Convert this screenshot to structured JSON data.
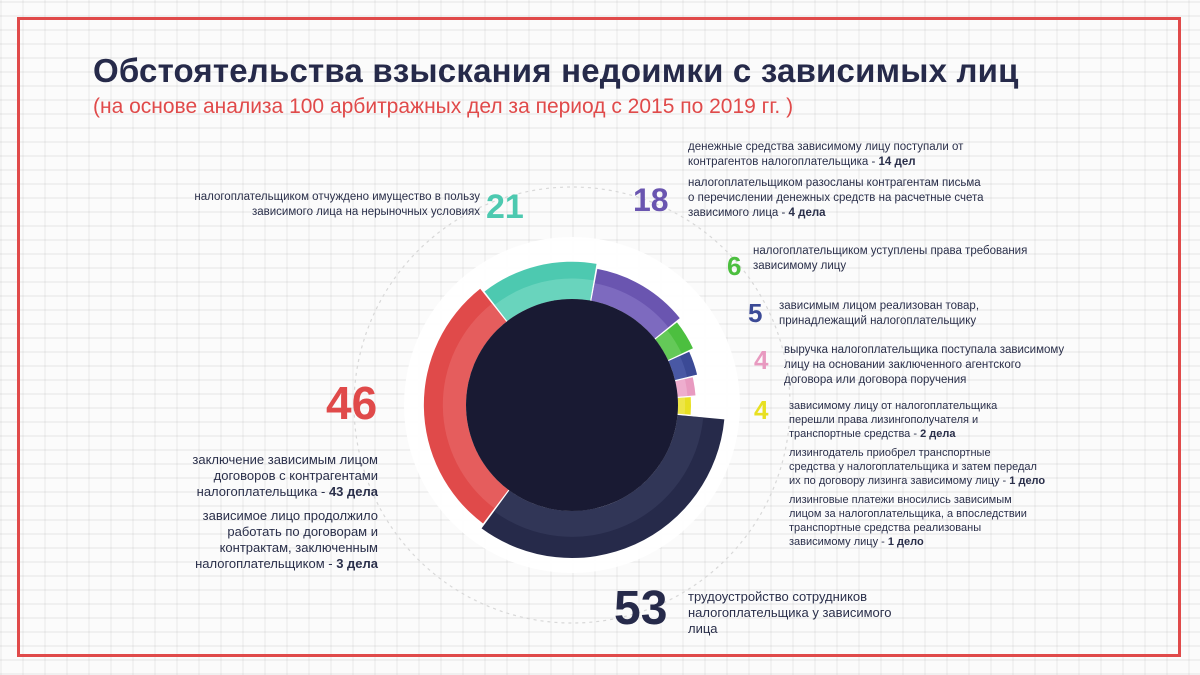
{
  "title": "Обстоятельства взыскания недоимки с зависимых лиц",
  "subtitle": "(на основе анализа 100 арбитражных дел за период с 2015 по 2019 гг. )",
  "colors": {
    "frame": "#e04a4a",
    "title": "#262a4a",
    "center": "#191a33"
  },
  "chart_data": {
    "type": "pie",
    "subtype": "donut",
    "center_fill": "#191a33",
    "slices": [
      {
        "value": 53,
        "label": "53",
        "color": "#262a4a",
        "highlight": "#3a3f63"
      },
      {
        "value": 46,
        "label": "46",
        "color": "#e04a4a",
        "highlight": "#ea6e6e"
      },
      {
        "value": 21,
        "label": "21",
        "color": "#4dc9b0",
        "highlight": "#82dcc9"
      },
      {
        "value": 18,
        "label": "18",
        "color": "#6a55b0",
        "highlight": "#8c7ccc"
      },
      {
        "value": 6,
        "label": "6",
        "color": "#4cbf3f",
        "highlight": "#79d26e"
      },
      {
        "value": 5,
        "label": "5",
        "color": "#3b4a96",
        "highlight": "#5664b0"
      },
      {
        "value": 4,
        "label": "4",
        "color": "#e89ac0",
        "highlight": "#f2bdd8"
      },
      {
        "value": 4,
        "label": "4",
        "color": "#e8e022",
        "highlight": "#f0ea66"
      }
    ]
  },
  "callouts": {
    "n21": {
      "number": "21",
      "color": "#4dc9b0",
      "line1": "налогоплательщиком отчуждено имущество в пользу",
      "line2": "зависимого лица на нерыночных условиях"
    },
    "n18": {
      "number": "18",
      "color": "#6a55b0",
      "a1": "денежные средства зависимому лицу поступали от",
      "a2": "контрагентов налогоплательщика - ",
      "a2b": "14 дел",
      "b1": "налогоплательщиком разосланы контрагентам письма",
      "b2": "о перечислении денежных средств на расчетные счета",
      "b3": "зависимого лица - ",
      "b3b": "4 дела"
    },
    "n6": {
      "number": "6",
      "color": "#4cbf3f",
      "line1": "налогоплательщиком уступлены права требования",
      "line2": "зависимому лицу"
    },
    "n5": {
      "number": "5",
      "color": "#3b4a96",
      "line1": "зависимым лицом реализован товар,",
      "line2": "принадлежащий налогоплательщику"
    },
    "n4a": {
      "number": "4",
      "color": "#e89ac0",
      "line1": "выручка налогоплательщика поступала зависимому",
      "line2": "лицу на основании заключенного агентского",
      "line3": "договора или договора поручения"
    },
    "n4b": {
      "number": "4",
      "color": "#e8e022",
      "a1": "зависимому лицу от налогоплательщика",
      "a2": "перешли права лизингополучателя и",
      "a3": "транспортные средства - ",
      "a3b": "2 дела",
      "b1": "лизингодатель приобрел транспортные",
      "b2": "средства у налогоплательщика и затем передал",
      "b3": "их по договору лизинга зависимому лицу - ",
      "b3b": "1 дело",
      "c1": "лизинговые платежи вносились зависимым",
      "c2": "лицом за налогоплательщика, а впоследствии",
      "c3": "транспортные средства реализованы",
      "c4": "зависимому лицу - ",
      "c4b": "1 дело"
    },
    "n46": {
      "number": "46",
      "color": "#e04a4a",
      "a1": "заключение зависимым лицом",
      "a2": "договоров с контрагентами",
      "a3": "налогоплательщика - ",
      "a3b": "43 дела",
      "b1": "зависимое лицо продолжило",
      "b2": "работать по договорам и",
      "b3": "контрактам, заключенным",
      "b4": "налогоплательщиком - ",
      "b4b": "3 дела"
    },
    "n53": {
      "number": "53",
      "color": "#262a4a",
      "line1": "трудоустройство сотрудников",
      "line2": "налогоплательщика у зависимого",
      "line3": "лица"
    }
  }
}
